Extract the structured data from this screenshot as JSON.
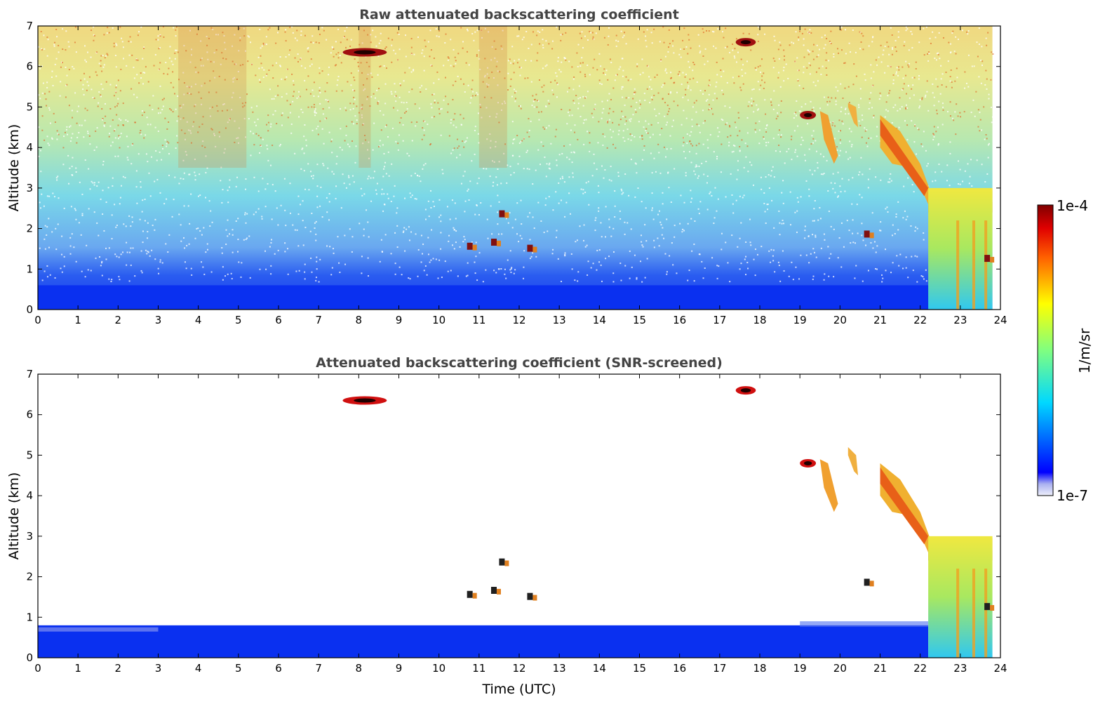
{
  "figure": {
    "panels": [
      {
        "title": "Raw attenuated backscattering coefficient",
        "ylabel": "Altitude (km)",
        "xlabel": ""
      },
      {
        "title": "Attenuated backscattering coefficient (SNR-screened)",
        "ylabel": "Altitude (km)",
        "xlabel": "Time (UTC)"
      }
    ],
    "colorbar": {
      "max_label": "1e-4",
      "min_label": "1e-7",
      "unit_label": "1/m/sr",
      "scale": "log",
      "colormap": "jet",
      "range": [
        1e-07,
        0.0001
      ]
    }
  },
  "chart_data": [
    {
      "type": "heatmap",
      "title": "Raw attenuated backscattering coefficient",
      "xlabel": "",
      "ylabel": "Altitude (km)",
      "xlim": [
        0,
        24
      ],
      "ylim": [
        0,
        7
      ],
      "xticks": [
        "0",
        "1",
        "2",
        "3",
        "4",
        "5",
        "6",
        "7",
        "8",
        "9",
        "10",
        "11",
        "12",
        "13",
        "14",
        "15",
        "16",
        "17",
        "18",
        "19",
        "20",
        "21",
        "22",
        "23",
        "24"
      ],
      "yticks": [
        "0",
        "1",
        "2",
        "3",
        "4",
        "5",
        "6",
        "7"
      ],
      "grid": false,
      "colorbar": {
        "label": "1/m/sr",
        "min": 1e-07,
        "max": 0.0001,
        "scale": "log"
      },
      "features": [
        {
          "name": "boundary layer",
          "t_start": 0,
          "t_end": 22.2,
          "alt_top_km": 0.6
        },
        {
          "name": "cloud 6.3 km",
          "t_start": 7.6,
          "t_end": 8.7,
          "alt_km": 6.35
        },
        {
          "name": "cloud 6.6 km",
          "t_start": 17.4,
          "t_end": 17.9,
          "alt_km": 6.6
        },
        {
          "name": "cloud 4.8 km",
          "t_start": 19.0,
          "t_end": 19.4,
          "alt_km": 4.8
        },
        {
          "name": "fall streak",
          "t_start": 19.5,
          "t_end": 20.5,
          "alt_top_km": 5.1,
          "alt_bottom_km": 3.6
        },
        {
          "name": "descending cloud",
          "t_start": 21.0,
          "t_end": 22.3,
          "alt_top_km": 4.8,
          "alt_bottom_km": 2.8
        },
        {
          "name": "cloud layer 2.5 km",
          "t_start": 22.2,
          "t_end": 23.8,
          "alt_km": 2.5
        },
        {
          "name": "precipitation",
          "t_start": 22.2,
          "t_end": 23.8,
          "alt_top_km": 3.0,
          "alt_bottom_km": 0
        }
      ]
    },
    {
      "type": "heatmap",
      "title": "Attenuated backscattering coefficient (SNR-screened)",
      "xlabel": "Time (UTC)",
      "ylabel": "Altitude (km)",
      "xlim": [
        0,
        24
      ],
      "ylim": [
        0,
        7
      ],
      "xticks": [
        "0",
        "1",
        "2",
        "3",
        "4",
        "5",
        "6",
        "7",
        "8",
        "9",
        "10",
        "11",
        "12",
        "13",
        "14",
        "15",
        "16",
        "17",
        "18",
        "19",
        "20",
        "21",
        "22",
        "23",
        "24"
      ],
      "yticks": [
        "0",
        "1",
        "2",
        "3",
        "4",
        "5",
        "6",
        "7"
      ],
      "grid": false,
      "colorbar": {
        "label": "1/m/sr",
        "min": 1e-07,
        "max": 0.0001,
        "scale": "log"
      },
      "features": [
        {
          "name": "boundary layer",
          "t_start": 0,
          "t_end": 22.2,
          "alt_top_km": 0.8
        },
        {
          "name": "cloud 6.3 km",
          "t_start": 7.6,
          "t_end": 8.7,
          "alt_km": 6.35
        },
        {
          "name": "cloud 6.6 km",
          "t_start": 17.4,
          "t_end": 17.9,
          "alt_km": 6.6
        },
        {
          "name": "cloud 4.8 km",
          "t_start": 19.0,
          "t_end": 19.4,
          "alt_km": 4.8
        },
        {
          "name": "fall streak",
          "t_start": 19.5,
          "t_end": 20.5,
          "alt_top_km": 5.2,
          "alt_bottom_km": 3.6
        },
        {
          "name": "descending cloud",
          "t_start": 21.0,
          "t_end": 22.3,
          "alt_top_km": 4.8,
          "alt_bottom_km": 2.8
        },
        {
          "name": "cloud layer 2.5 km",
          "t_start": 22.2,
          "t_end": 23.8,
          "alt_km": 2.5
        },
        {
          "name": "precipitation",
          "t_start": 22.2,
          "t_end": 23.8,
          "alt_top_km": 3.0,
          "alt_bottom_km": 0
        }
      ]
    }
  ]
}
